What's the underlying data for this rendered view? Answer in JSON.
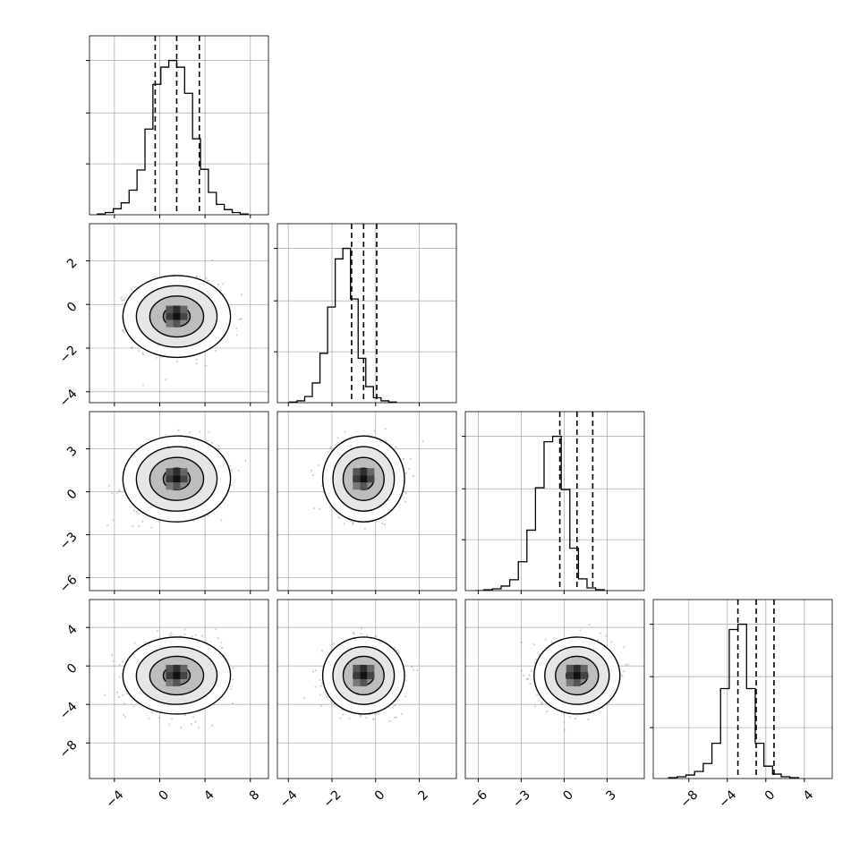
{
  "chart_data": {
    "type": "corner",
    "grid": true,
    "dimensions": 4,
    "ranges": [
      [
        -6.2,
        9.6
      ],
      [
        -4.5,
        3.7
      ],
      [
        -6.9,
        5.6
      ],
      [
        -11.7,
        6.9
      ]
    ],
    "ticks": [
      [
        -4,
        0,
        4,
        8
      ],
      [
        -4,
        -2,
        0,
        2
      ],
      [
        -6,
        -3,
        0,
        3
      ],
      [
        -8,
        -4,
        0,
        4
      ]
    ],
    "tick_labels": [
      [
        "−4",
        "0",
        "4",
        "8"
      ],
      [
        "−4",
        "−2",
        "0",
        "2"
      ],
      [
        "−6",
        "−3",
        "0",
        "3"
      ],
      [
        "−8",
        "−4",
        "0",
        "4"
      ]
    ],
    "quantiles": [
      [
        -0.4,
        1.5,
        3.5
      ],
      [
        -1.1,
        -0.55,
        0.05
      ],
      [
        -0.3,
        0.9,
        2.0
      ],
      [
        -2.9,
        -1.0,
        0.85
      ]
    ],
    "histograms": [
      {
        "bin_min": -5.5,
        "bin_width": 0.7,
        "counts": [
          1,
          3,
          8,
          16,
          33,
          60,
          115,
          175,
          198,
          207,
          198,
          163,
          102,
          61,
          30,
          14,
          7,
          3,
          1
        ]
      },
      {
        "bin_min": -3.95,
        "bin_width": 0.35,
        "counts": [
          1,
          3,
          10,
          32,
          80,
          155,
          233,
          250,
          168,
          72,
          26,
          8,
          3,
          1
        ]
      },
      {
        "bin_min": -6.2,
        "bin_width": 0.6,
        "counts": [
          0,
          1,
          2,
          5,
          12,
          32,
          67,
          114,
          165,
          171,
          112,
          47,
          13,
          3,
          1
        ]
      },
      {
        "bin_min": -10.1,
        "bin_width": 0.9,
        "counts": [
          1,
          2,
          4,
          8,
          17,
          40,
          102,
          169,
          175,
          102,
          40,
          14,
          5,
          2,
          1
        ]
      }
    ],
    "joint": [
      {
        "row": 1,
        "col": 0,
        "mean": [
          1.5,
          -0.55
        ],
        "sd": [
          1.9,
          0.75
        ],
        "rho": 0.0
      },
      {
        "row": 2,
        "col": 0,
        "mean": [
          1.5,
          0.9
        ],
        "sd": [
          1.9,
          1.2
        ],
        "rho": 0.2
      },
      {
        "row": 2,
        "col": 1,
        "mean": [
          -0.55,
          0.9
        ],
        "sd": [
          0.75,
          1.2
        ],
        "rho": 0.0
      },
      {
        "row": 3,
        "col": 0,
        "mean": [
          1.5,
          -1.0
        ],
        "sd": [
          1.9,
          1.6
        ],
        "rho": 0.1
      },
      {
        "row": 3,
        "col": 1,
        "mean": [
          -0.55,
          -1.0
        ],
        "sd": [
          0.75,
          1.6
        ],
        "rho": 0.0
      },
      {
        "row": 3,
        "col": 2,
        "mean": [
          0.9,
          -1.0
        ],
        "sd": [
          1.2,
          1.6
        ],
        "rho": 0.0
      }
    ],
    "contour_levels_sigma": [
      0.5,
      1.0,
      1.5,
      2.0
    ],
    "colors": {
      "line": "#000000",
      "grid": "#b0b0b0",
      "points": "#9a9a9a"
    }
  }
}
